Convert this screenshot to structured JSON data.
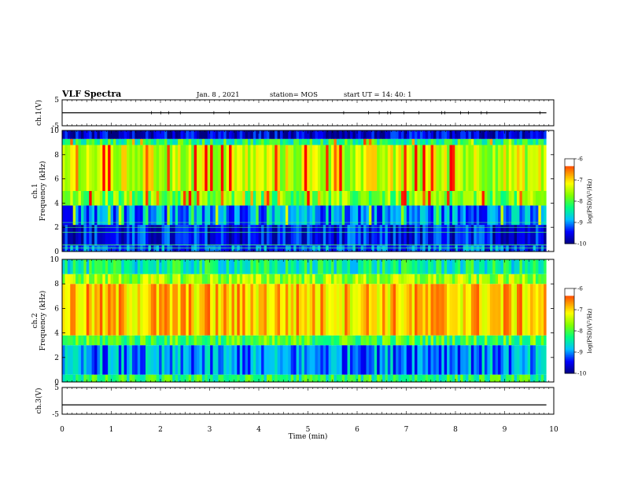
{
  "header": {
    "title": "VLF Spectra",
    "date": "Jan. 8 , 2021",
    "station": "station= MOS",
    "start": "start UT = 14: 40: 1"
  },
  "chart_data": [
    {
      "type": "line",
      "ylabel": "ch.1(V)",
      "ylim": [
        -5,
        5
      ],
      "yticks": [
        "5",
        "-5"
      ],
      "x": [
        0,
        1,
        2,
        3,
        4,
        5,
        6,
        7,
        8,
        9,
        9.85
      ],
      "values": [
        0,
        0,
        0,
        0,
        0,
        0,
        0,
        0,
        0,
        0,
        0
      ]
    },
    {
      "type": "heatmap",
      "ylabel": "ch.1\nFrequency (kHz)",
      "ylim": [
        0,
        10
      ],
      "yticks": [
        "0",
        "2",
        "4",
        "6",
        "8",
        "10"
      ],
      "bands": [
        {
          "from": 0,
          "to": 0.5,
          "level": -9.2
        },
        {
          "from": 0.5,
          "to": 2.2,
          "level": -9.5
        },
        {
          "from": 2.2,
          "to": 3.8,
          "level": -9.0
        },
        {
          "from": 3.8,
          "to": 5.0,
          "level": -7.8
        },
        {
          "from": 5.0,
          "to": 8.8,
          "level": -7.4
        },
        {
          "from": 8.8,
          "to": 9.3,
          "level": -8.2
        },
        {
          "from": 9.3,
          "to": 10,
          "level": -9.7
        }
      ],
      "colorbar": {
        "label": "log(PSD)(V²/Hz)",
        "ticks": [
          "-6",
          "-7",
          "-8",
          "-9",
          "-10"
        ],
        "range": [
          -10,
          -6
        ]
      }
    },
    {
      "type": "heatmap",
      "ylabel": "ch.2\nFrequency (kHz)",
      "ylim": [
        0,
        10
      ],
      "yticks": [
        "0",
        "2",
        "4",
        "6",
        "8",
        "10"
      ],
      "bands": [
        {
          "from": 0,
          "to": 0.6,
          "level": -8.2
        },
        {
          "from": 0.6,
          "to": 3.0,
          "level": -9.0
        },
        {
          "from": 3.0,
          "to": 3.8,
          "level": -8.0
        },
        {
          "from": 3.8,
          "to": 8.0,
          "level": -6.9
        },
        {
          "from": 8.0,
          "to": 8.8,
          "level": -7.6
        },
        {
          "from": 8.8,
          "to": 10,
          "level": -8.4
        }
      ],
      "colorbar": {
        "label": "log(PSD)(V²/Hz)",
        "ticks": [
          "-6",
          "-7",
          "-8",
          "-9",
          "-10"
        ],
        "range": [
          -10,
          -6
        ]
      }
    },
    {
      "type": "line",
      "ylabel": "ch.3(V)",
      "ylim": [
        -5,
        5
      ],
      "yticks": [
        "5",
        "-5"
      ],
      "x": [
        0,
        1,
        2,
        3,
        4,
        5,
        6,
        7,
        8,
        9,
        9.85
      ],
      "values": [
        -1.5,
        -1.5,
        -1.5,
        -1.5,
        -1.5,
        -1.5,
        -1.5,
        -1.5,
        -1.5,
        -1.5,
        -1.5
      ],
      "xlabel": "Time (min)",
      "xlim": [
        0,
        10
      ],
      "xticks": [
        "0",
        "1",
        "2",
        "3",
        "4",
        "5",
        "6",
        "7",
        "8",
        "9",
        "10"
      ]
    }
  ],
  "colors": {
    "colormap": [
      "#000080",
      "#0000ff",
      "#00c0ff",
      "#00ff80",
      "#80ff00",
      "#ffff00",
      "#ff8000",
      "#ff0000",
      "#ffffff"
    ],
    "line": "#000000"
  }
}
